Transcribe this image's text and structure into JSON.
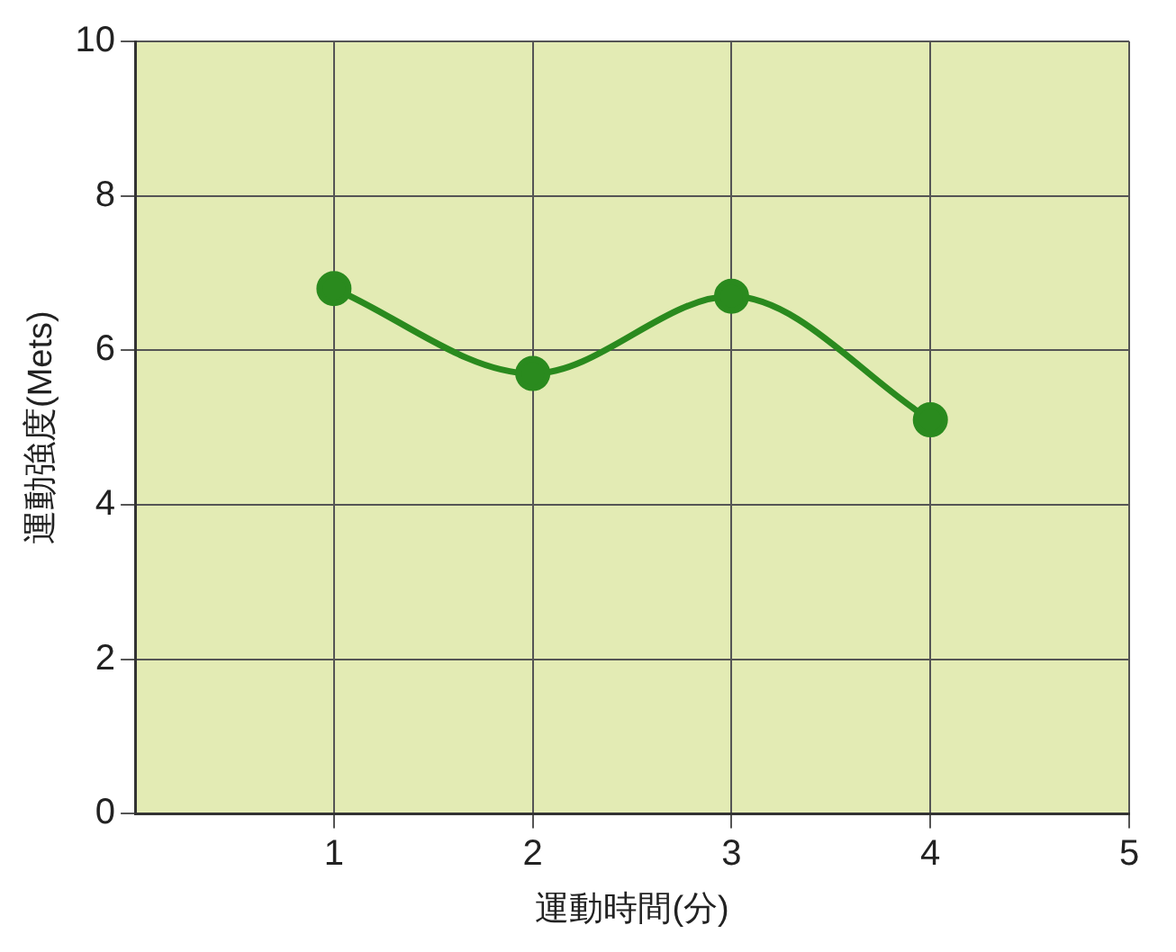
{
  "chart_data": {
    "type": "line",
    "xlabel": "運動時間(分)",
    "ylabel": "運動強度(Mets)",
    "x": [
      1,
      2,
      3,
      4
    ],
    "series": [
      {
        "color": "#2a8a1e",
        "values": [
          6.8,
          5.7,
          6.7,
          5.1
        ]
      }
    ],
    "xlim": [
      0,
      5
    ],
    "xticks": [
      1,
      2,
      3,
      4,
      5
    ],
    "ylim": [
      0,
      10
    ],
    "yticks": [
      0,
      2,
      4,
      6,
      8,
      10
    ],
    "grid": true,
    "legend": false,
    "marker": "circle",
    "line_style": "solid"
  }
}
